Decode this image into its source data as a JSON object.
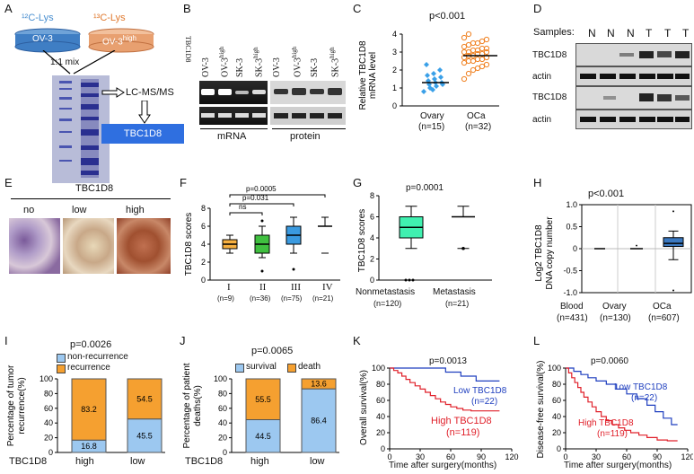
{
  "panels": {
    "A": {
      "letter": "A",
      "lys12": "¹²C-Lys",
      "lys13": "¹³C-Lys",
      "dish1": "OV-3",
      "dish2": "OV-3",
      "dish2_sup": "high",
      "mix": "1:1 mix",
      "lcms": "LC-MS/MS",
      "result": "TBC1D8",
      "colors": {
        "blue_text": "#4a8fd0",
        "orange_text": "#e07a30",
        "dish_blue": "#3f7ec4",
        "dish_orange": "#e8a070",
        "result_box": "#2f6fe0"
      }
    },
    "B": {
      "letter": "B",
      "row_label": "TBC1D8",
      "lanes": [
        "OV-3",
        "OV-3",
        "SK-3",
        "SK-3",
        "OV-3",
        "OV-3",
        "SK-3",
        "SK-3"
      ],
      "lane_sups": [
        "",
        "high",
        "",
        "high",
        "",
        "high",
        "",
        "high"
      ],
      "mrna": "mRNA",
      "protein": "protein"
    },
    "C": {
      "letter": "C",
      "pval": "p<0.001",
      "ylabel1": "Relative TBC1D8",
      "ylabel2": "mRNA level",
      "yticks": [
        "0",
        "1",
        "2",
        "3",
        "4"
      ],
      "groups": [
        "Ovary",
        "OCa"
      ],
      "ns": [
        "(n=15)",
        "(n=32)"
      ]
    },
    "D": {
      "letter": "D",
      "samples": "Samples:",
      "cols": [
        "N",
        "N",
        "N",
        "T",
        "T",
        "T"
      ],
      "rows": [
        "TBC1D8",
        "actin",
        "TBC1D8",
        "actin"
      ]
    },
    "E": {
      "letter": "E",
      "title": "TBC1D8",
      "cols": [
        "no",
        "low",
        "high"
      ]
    },
    "F": {
      "letter": "F",
      "ylabel": "TBC1D8 scores",
      "p1": "p=0.0005",
      "p2": "p=0.031",
      "ns_label": "ns",
      "yticks": [
        "0",
        "2",
        "4",
        "6",
        "8"
      ],
      "groups": [
        "I",
        "II",
        "III",
        "IV"
      ],
      "ns": [
        "(n=9)",
        "(n=36)",
        "(n=75)",
        "(n=21)"
      ]
    },
    "G": {
      "letter": "G",
      "ylabel": "TBC1D8 scores",
      "pval": "p=0.0001",
      "yticks": [
        "0",
        "2",
        "4",
        "6",
        "8"
      ],
      "groups": [
        "Nonmetastasis",
        "Metastasis"
      ],
      "ns": [
        "(n=120)",
        "(n=21)"
      ]
    },
    "H": {
      "letter": "H",
      "pval": "p<0.001",
      "ylabel1": "Log2 TBC1D8",
      "ylabel2": "DNA copy number",
      "yticks": [
        "1.0",
        "0.5",
        "0",
        "-0.5",
        "-1.0"
      ],
      "groups": [
        "Blood",
        "Ovary",
        "OCa"
      ],
      "ns": [
        "(n=431)",
        "(n=130)",
        "(n=607)"
      ]
    },
    "I": {
      "letter": "I",
      "pval": "p=0.0026",
      "ylabel1": "Percentage of tumor",
      "ylabel2": "recurrence(%)",
      "legend": [
        "non-recurrence",
        "recurrence"
      ],
      "yticks": [
        "0",
        "20",
        "40",
        "60",
        "80",
        "100"
      ],
      "xprefix": "TBC1D8",
      "cats": [
        "high",
        "low"
      ],
      "bottom_vals": [
        "16.8",
        "45.5"
      ],
      "top_vals": [
        "83.2",
        "54.5"
      ]
    },
    "J": {
      "letter": "J",
      "pval": "p=0.0065",
      "ylabel1": "Percentage of patient",
      "ylabel2": "deaths(%)",
      "legend": [
        "survival",
        "death"
      ],
      "yticks": [
        "0",
        "20",
        "40",
        "60",
        "80",
        "100"
      ],
      "xprefix": "TBC1D8",
      "cats": [
        "high",
        "low"
      ],
      "bottom_vals": [
        "44.5",
        "86.4"
      ],
      "top_vals": [
        "55.5",
        "13.6"
      ]
    },
    "K": {
      "letter": "K",
      "pval": "p=0.0013",
      "ylabel": "Overall survival(%)",
      "xlabel": "Time after surgery(months)",
      "yticks": [
        "0",
        "20",
        "40",
        "60",
        "80",
        "100"
      ],
      "xticks": [
        "0",
        "30",
        "60",
        "90",
        "120"
      ],
      "low_label": "Low TBC1D8",
      "low_n": "(n=22)",
      "high_label": "High TBC1D8",
      "high_n": "(n=119)"
    },
    "L": {
      "letter": "L",
      "pval": "p=0.0060",
      "ylabel": "Disease-free survival(%)",
      "xlabel": "Time after surgery(months)",
      "yticks": [
        "0",
        "20",
        "40",
        "60",
        "80",
        "100"
      ],
      "xticks": [
        "0",
        "30",
        "60",
        "90",
        "120"
      ],
      "low_label": "Low TBC1D8",
      "low_n": "(n=22)",
      "high_label": "High TBC1D8",
      "high_n": "(n=119)"
    }
  },
  "colors": {
    "blue": "#1f3fbf",
    "red": "#e0202a",
    "orange": "#f5a030",
    "lightblue": "#9cc8f0",
    "box_orange": "#f7b040",
    "box_green": "#40c040",
    "box_blue": "#3a9ae0",
    "box_cyan": "#40f0b0"
  }
}
